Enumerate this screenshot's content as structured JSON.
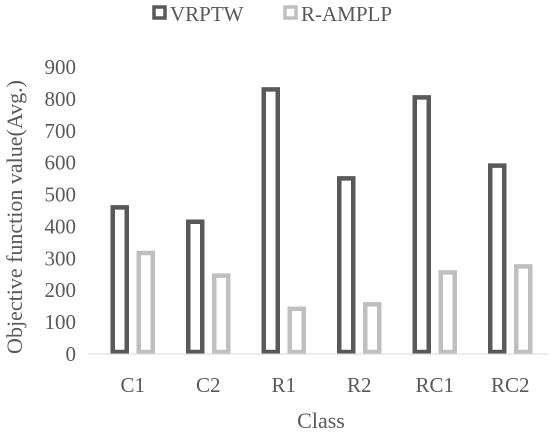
{
  "chart_data": {
    "type": "bar",
    "title": "",
    "xlabel": "Class",
    "ylabel": "Objective function value(Avg.)",
    "categories": [
      "C1",
      "C2",
      "R1",
      "R2",
      "RC1",
      "RC2"
    ],
    "series": [
      {
        "name": "VRPTW",
        "values": [
          466,
          421,
          836,
          557,
          811,
          597
        ],
        "color": "#595959"
      },
      {
        "name": "R-AMPLP",
        "values": [
          323,
          252,
          148,
          162,
          262,
          281
        ],
        "color": "#bfbfbf"
      }
    ],
    "yticks": [
      "0",
      "100",
      "200",
      "300",
      "400",
      "500",
      "600",
      "700",
      "800",
      "900"
    ],
    "ylim": [
      0,
      900
    ],
    "grid": false,
    "legend": "top-center"
  }
}
